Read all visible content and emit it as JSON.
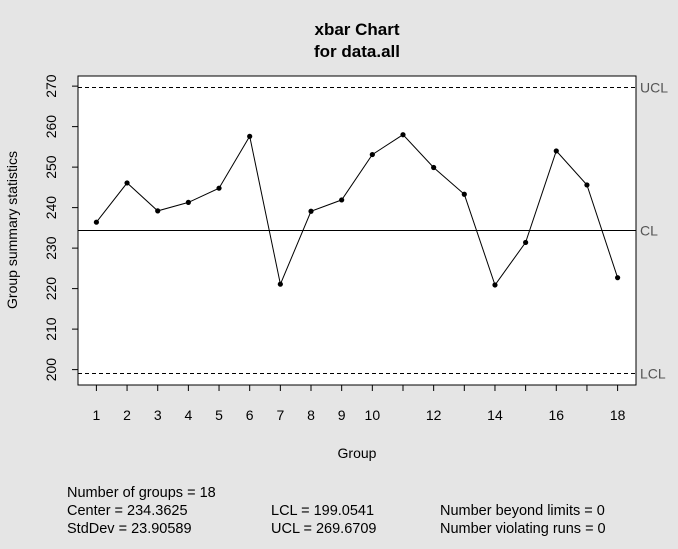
{
  "chart_data": {
    "type": "line",
    "title": "xbar Chart",
    "subtitle": "for data.all",
    "xlabel": "Group",
    "ylabel": "Group summary statistics",
    "xlim": [
      0.4,
      18.6
    ],
    "ylim": [
      196.2,
      272.5
    ],
    "yticks": [
      200,
      210,
      220,
      230,
      240,
      250,
      260,
      270
    ],
    "xticks": [
      1,
      2,
      3,
      4,
      5,
      6,
      7,
      8,
      9,
      10,
      12,
      14,
      16,
      18
    ],
    "x": [
      1,
      2,
      3,
      4,
      5,
      6,
      7,
      8,
      9,
      10,
      11,
      12,
      13,
      14,
      15,
      16,
      17,
      18
    ],
    "series": [
      {
        "values": [
          236.4,
          246.1,
          239.2,
          241.3,
          244.8,
          257.6,
          221.1,
          239.1,
          241.9,
          253.1,
          258.0,
          249.9,
          243.3,
          220.9,
          231.4,
          254.0,
          245.6,
          222.7
        ]
      }
    ],
    "control_limits": [
      {
        "label": "UCL",
        "value": 269.6709,
        "style": "dashed"
      },
      {
        "label": "CL",
        "value": 234.3625,
        "style": "solid"
      },
      {
        "label": "LCL",
        "value": 199.0541,
        "style": "dashed"
      }
    ],
    "grid": false,
    "legend": "none",
    "colors": {
      "background": "#e5e5e5",
      "plot": "#ffffff",
      "line": "#000000",
      "limit_labels": "#555555"
    }
  },
  "stats": {
    "groups": "Number of groups = 18",
    "center": "Center = 234.3625",
    "stddev": "StdDev = 23.90589",
    "lcl": "LCL = 199.0541",
    "ucl": "UCL = 269.6709",
    "beyond": "Number beyond limits = 0",
    "violating": "Number violating runs = 0"
  }
}
